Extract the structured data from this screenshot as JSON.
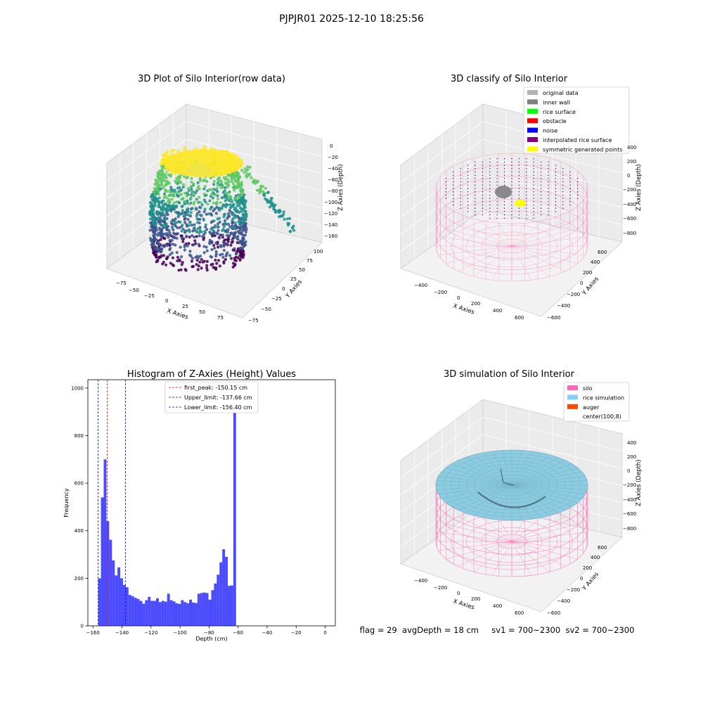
{
  "figure": {
    "suptitle": "PJPJR01 2025-12-10 18:25:56"
  },
  "panel_tl": {
    "title": "3D Plot of Silo Interior(row data)",
    "xlabel": "X Axies",
    "ylabel": "Y Axies",
    "zlabel": "Z Axies (Depth)",
    "xticks": [
      "−75",
      "−50",
      "−25",
      "0",
      "25",
      "50",
      "75"
    ],
    "yticks": [
      "−75",
      "−50",
      "−25",
      "0",
      "25",
      "50",
      "75",
      "100"
    ],
    "zticks": [
      "0",
      "−20",
      "−40",
      "−60",
      "−80",
      "−100",
      "−120",
      "−140",
      "−160"
    ],
    "colormap": [
      "#440154",
      "#3b528b",
      "#21918c",
      "#5ec962",
      "#fde725"
    ]
  },
  "panel_tr": {
    "title": "3D classify of Silo Interior",
    "xlabel": "X Axies",
    "ylabel": "Y Axies",
    "zlabel": "Z Axies (Depth)",
    "xticks": [
      "−400",
      "−200",
      "0",
      "200",
      "400",
      "600"
    ],
    "yticks": [
      "−600",
      "−400",
      "−200",
      "0",
      "200",
      "400",
      "600"
    ],
    "zticks": [
      "400",
      "200",
      "0",
      "−200",
      "−400",
      "−600",
      "−800"
    ],
    "legend": [
      {
        "label": "original data",
        "color": "#b3b3b3"
      },
      {
        "label": "inner wall",
        "color": "#808080"
      },
      {
        "label": "rice surface",
        "color": "#00ff00"
      },
      {
        "label": "obstacle",
        "color": "#ff0000"
      },
      {
        "label": "noise",
        "color": "#0000ff"
      },
      {
        "label": "interpolated rice surface",
        "color": "#800080"
      },
      {
        "label": "symmetric generated points",
        "color": "#ffff00"
      }
    ]
  },
  "panel_bl": {
    "title": "Histogram of Z-Axies (Height) Values",
    "legend": [
      {
        "label": "first_peak: -150.15 cm",
        "color": "#ff0000"
      },
      {
        "label": "Upper_limit: -137.66 cm",
        "color": "#0000cc"
      },
      {
        "label": "Lower_limit: -156.40 cm",
        "color": "#0000cc"
      }
    ]
  },
  "panel_br": {
    "title": "3D simulation of Silo Interior",
    "xlabel": "X Axies",
    "ylabel": "Y Axies",
    "zlabel": "Z Axies (Depth)",
    "xticks": [
      "−400",
      "−200",
      "0",
      "200",
      "400",
      "600"
    ],
    "yticks": [
      "−600",
      "−400",
      "−200",
      "0",
      "200",
      "400",
      "600"
    ],
    "zticks": [
      "400",
      "200",
      "0",
      "−200",
      "−400",
      "−600",
      "−800"
    ],
    "legend": [
      {
        "label": "silo",
        "color": "#ff69b4"
      },
      {
        "label": "rice simulation",
        "color": "#87cefa"
      },
      {
        "label": "auger",
        "color": "#ff4500"
      },
      {
        "label": "center(100,8)",
        "color": ""
      }
    ],
    "status_text": "flag = 29  avgDepth = 18 cm     sv1 = 700~2300  sv2 = 700~2300"
  },
  "chart_data": {
    "type": "bar",
    "title": "Histogram of Z-Axies (Height) Values",
    "xlabel": "Depth (cm)",
    "ylabel": "Frequency",
    "xlim": [
      -163.5,
      7
    ],
    "ylim": [
      0,
      1035
    ],
    "xticks": [
      -160,
      -140,
      -120,
      -100,
      -80,
      -60,
      -40,
      -20,
      0
    ],
    "yticks": [
      0,
      200,
      400,
      600,
      800,
      1000
    ],
    "bin_start": -156.4,
    "bin_width": 1.9,
    "values": [
      200,
      540,
      700,
      440,
      362,
      275,
      212,
      246,
      200,
      172,
      162,
      130,
      125,
      118,
      113,
      105,
      93,
      108,
      122,
      105,
      105,
      116,
      100,
      105,
      102,
      135,
      108,
      103,
      95,
      92,
      108,
      100,
      95,
      110,
      98,
      96,
      135,
      138,
      140,
      138,
      110,
      150,
      178,
      215,
      267,
      322,
      290,
      168,
      170,
      985
    ],
    "series_color": "#0000ff",
    "vlines": [
      {
        "name": "first_peak",
        "x": -150.15,
        "color": "#ff0000"
      },
      {
        "name": "Upper_limit",
        "x": -137.66,
        "color": "#0000cc"
      },
      {
        "name": "Lower_limit",
        "x": -156.4,
        "color": "#0000cc"
      }
    ]
  }
}
